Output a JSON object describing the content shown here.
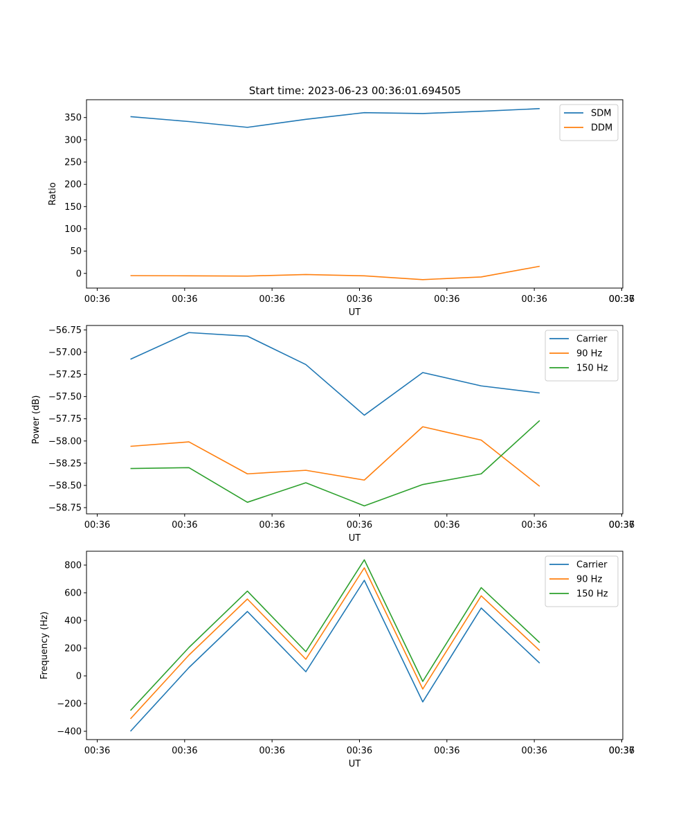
{
  "title": "Start time: 2023-06-23 00:36:01.694505",
  "colors": {
    "blue": "#1f77b4",
    "orange": "#ff7f0e",
    "green": "#2ca02c"
  },
  "chart_data": [
    {
      "type": "line",
      "xlabel": "UT",
      "ylabel": "Ratio",
      "x_tick_labels": [
        "00:36",
        "00:36",
        "00:36",
        "00:36",
        "00:36",
        "00:36",
        "00:36",
        "00:37"
      ],
      "xlim": [
        0,
        1
      ],
      "x": [
        0.082,
        0.191,
        0.3,
        0.409,
        0.518,
        0.627,
        0.736,
        0.845
      ],
      "y_ticks": [
        0,
        50,
        100,
        150,
        200,
        250,
        300,
        350
      ],
      "ylim": [
        -33,
        390
      ],
      "legend": "upper-right",
      "series": [
        {
          "name": "SDM",
          "color": "#1f77b4",
          "values": [
            352,
            341,
            328,
            346,
            361,
            359,
            364,
            370
          ]
        },
        {
          "name": "DDM",
          "color": "#ff7f0e",
          "values": [
            -5,
            -5.5,
            -6,
            -2.5,
            -5.5,
            -14,
            -8,
            16
          ]
        }
      ]
    },
    {
      "type": "line",
      "xlabel": "UT",
      "ylabel": "Power (dB)",
      "x_tick_labels": [
        "00:36",
        "00:36",
        "00:36",
        "00:36",
        "00:36",
        "00:36",
        "00:36",
        "00:37"
      ],
      "xlim": [
        0,
        1
      ],
      "x": [
        0.082,
        0.191,
        0.3,
        0.409,
        0.518,
        0.627,
        0.736,
        0.845
      ],
      "y_ticks": [
        -58.75,
        -58.5,
        -58.25,
        -58.0,
        -57.75,
        -57.5,
        -57.25,
        -57.0,
        -56.75
      ],
      "y_tick_labels": [
        "−58.75",
        "−58.50",
        "−58.25",
        "−58.00",
        "−57.75",
        "−57.50",
        "−57.25",
        "−57.00",
        "−56.75"
      ],
      "ylim": [
        -58.82,
        -56.7
      ],
      "legend": "upper-right",
      "series": [
        {
          "name": "Carrier",
          "color": "#1f77b4",
          "values": [
            -57.08,
            -56.78,
            -56.82,
            -57.14,
            -57.71,
            -57.23,
            -57.38,
            -57.46
          ]
        },
        {
          "name": "90 Hz",
          "color": "#ff7f0e",
          "values": [
            -58.06,
            -58.01,
            -58.37,
            -58.33,
            -58.44,
            -57.84,
            -57.99,
            -58.51
          ]
        },
        {
          "name": "150 Hz",
          "color": "#2ca02c",
          "values": [
            -58.31,
            -58.3,
            -58.69,
            -58.47,
            -58.73,
            -58.49,
            -58.37,
            -57.77
          ]
        }
      ]
    },
    {
      "type": "line",
      "xlabel": "UT",
      "ylabel": "Frequency (Hz)",
      "x_tick_labels": [
        "00:36",
        "00:36",
        "00:36",
        "00:36",
        "00:36",
        "00:36",
        "00:36",
        "00:37"
      ],
      "xlim": [
        0,
        1
      ],
      "x": [
        0.082,
        0.191,
        0.3,
        0.409,
        0.518,
        0.627,
        0.736,
        0.845
      ],
      "y_ticks": [
        -400,
        -200,
        0,
        200,
        400,
        600,
        800
      ],
      "y_tick_labels": [
        "−400",
        "−200",
        "0",
        "200",
        "400",
        "600",
        "800"
      ],
      "ylim": [
        -460,
        900
      ],
      "legend": "upper-right",
      "series": [
        {
          "name": "Carrier",
          "color": "#1f77b4",
          "values": [
            -400,
            60,
            465,
            30,
            690,
            -188,
            490,
            92
          ]
        },
        {
          "name": "90 Hz",
          "color": "#ff7f0e",
          "values": [
            -310,
            150,
            555,
            120,
            780,
            -95,
            578,
            183
          ]
        },
        {
          "name": "150 Hz",
          "color": "#2ca02c",
          "values": [
            -250,
            205,
            612,
            175,
            838,
            -40,
            637,
            240
          ]
        }
      ]
    }
  ]
}
